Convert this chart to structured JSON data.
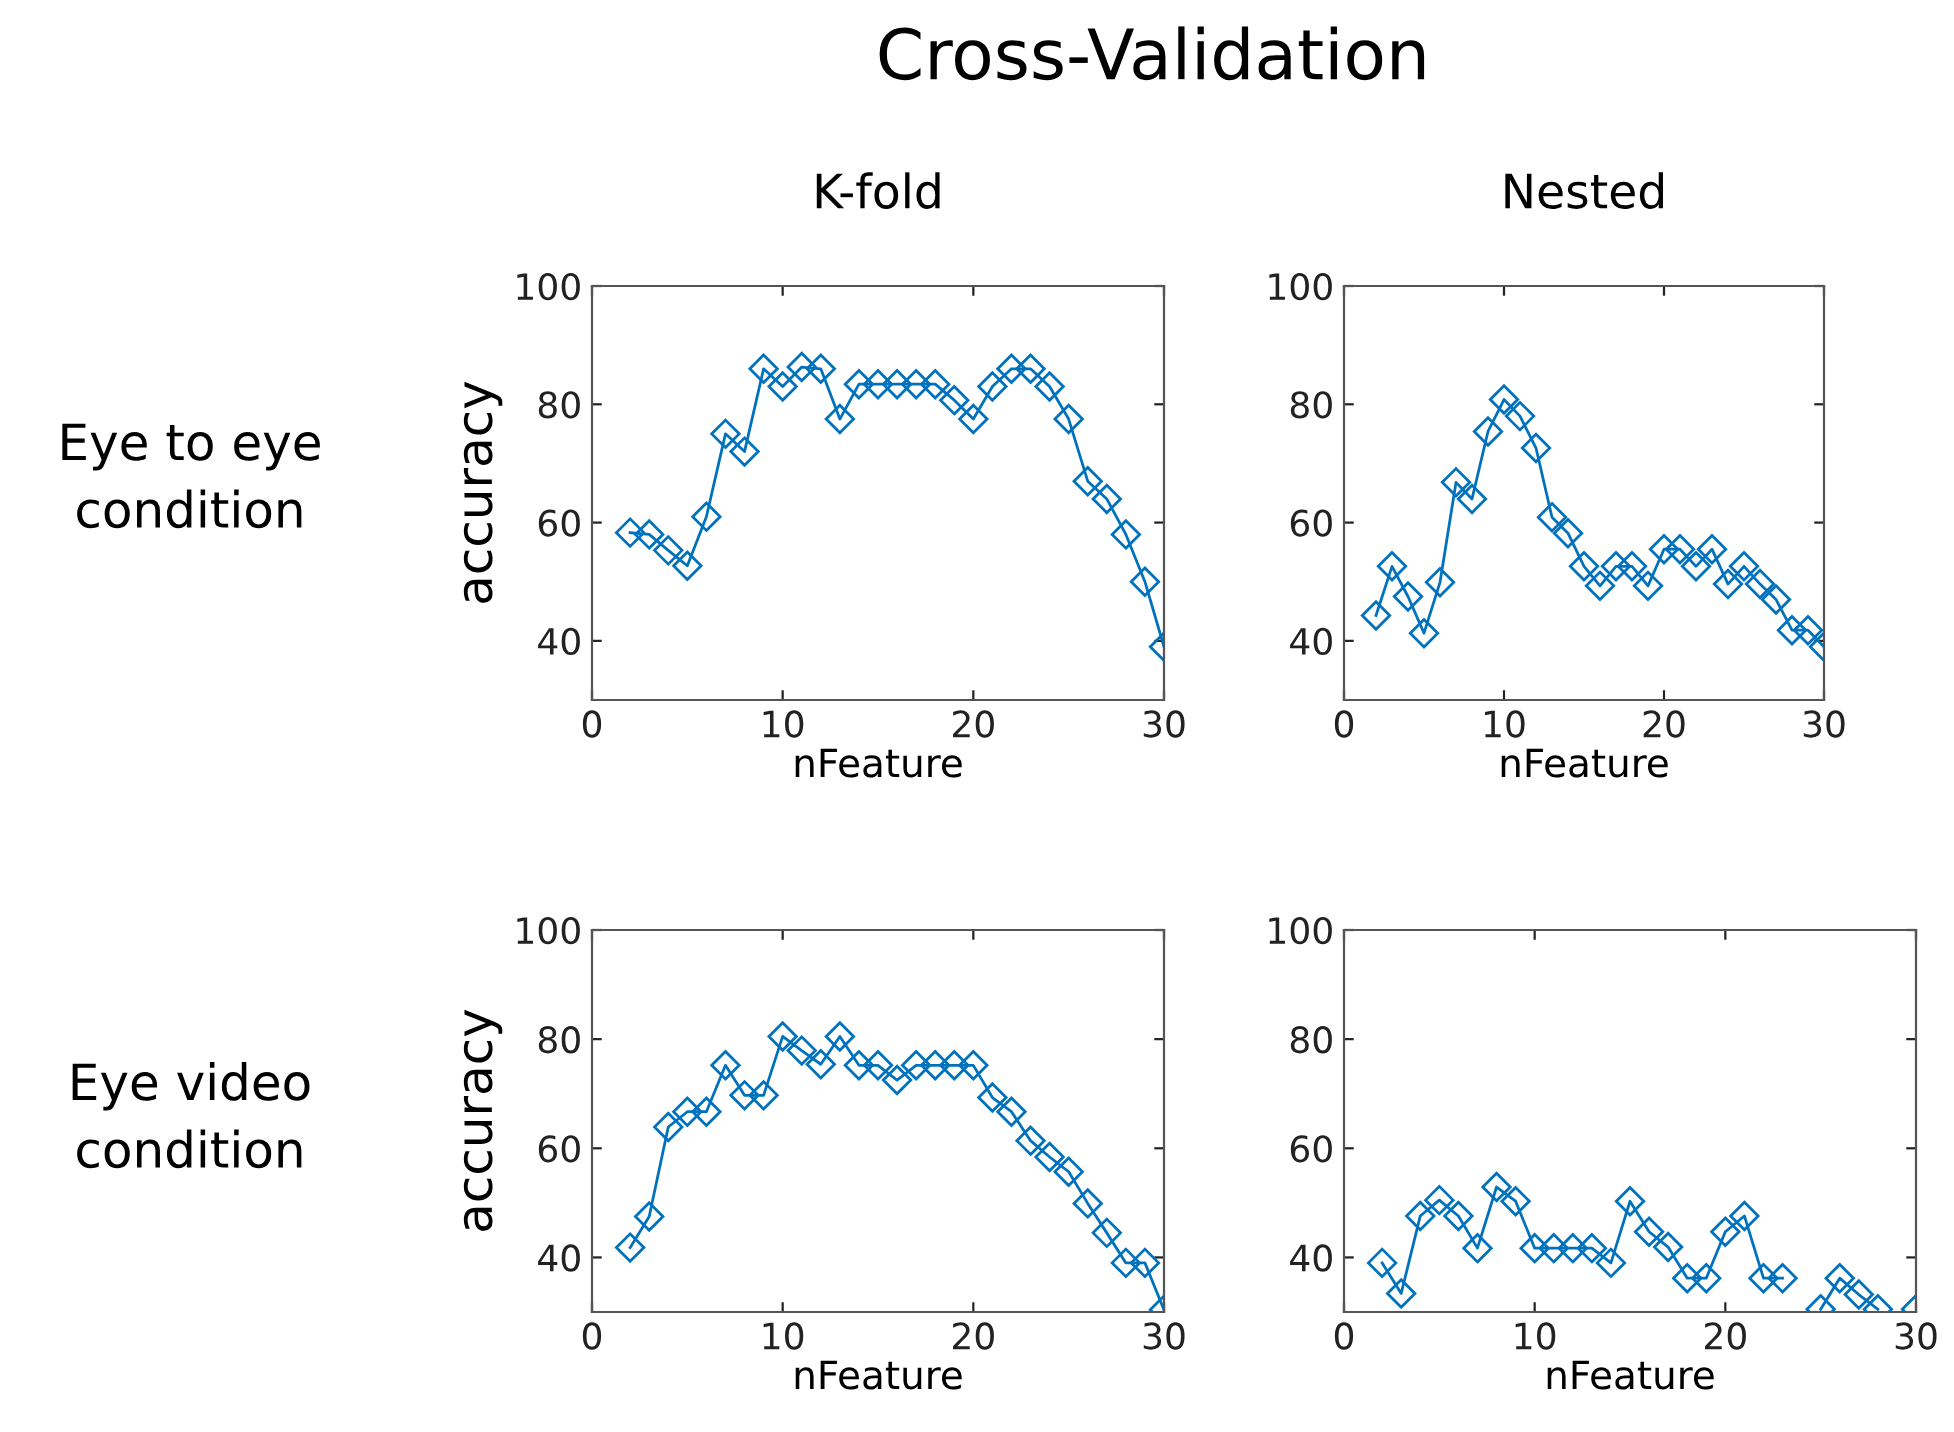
{
  "chart_data": [
    {
      "type": "line",
      "title": "K-fold",
      "xlabel": "nFeature",
      "ylabel": "accuracy",
      "annotations": [
        "Cross-Validation",
        "Eye to eye condition"
      ],
      "xlim": [
        0,
        30
      ],
      "xticks": [
        0,
        10,
        20,
        30
      ],
      "ylim": [
        30,
        100
      ],
      "yticks": [
        40,
        60,
        80,
        100
      ],
      "grid": false,
      "marker": "diamond",
      "line_style": "solid",
      "x": [
        2,
        3,
        4,
        5,
        6,
        7,
        8,
        9,
        10,
        11,
        12,
        13,
        14,
        15,
        16,
        17,
        18,
        19,
        20,
        21,
        22,
        23,
        24,
        25,
        26,
        27,
        28,
        29,
        30
      ],
      "series": [
        {
          "color": "#0072bd",
          "values": [
            58.3,
            58,
            55.3,
            52.7,
            61,
            75,
            72,
            86,
            83,
            86.3,
            86,
            77.5,
            83.4,
            83.4,
            83.4,
            83.4,
            83.4,
            80.7,
            77.5,
            83,
            86,
            86,
            83,
            77.5,
            67,
            64,
            58,
            50,
            39
          ]
        }
      ]
    },
    {
      "type": "line",
      "title": "Nested",
      "xlabel": "nFeature",
      "xlim": [
        0,
        30
      ],
      "xticks": [
        0,
        10,
        20,
        30
      ],
      "ylim": [
        30,
        100
      ],
      "yticks": [
        40,
        60,
        80,
        100
      ],
      "grid": false,
      "marker": "diamond",
      "line_style": "solid",
      "x": [
        2,
        3,
        4,
        5,
        6,
        7,
        8,
        9,
        10,
        11,
        12,
        13,
        14,
        15,
        16,
        17,
        18,
        19,
        20,
        21,
        22,
        23,
        24,
        25,
        26,
        27,
        28,
        29,
        30
      ],
      "series": [
        {
          "color": "#0072bd",
          "values": [
            44.3,
            52.6,
            47.5,
            41.3,
            49.9,
            66.8,
            64,
            75.4,
            80.8,
            78,
            72.6,
            60.9,
            58.2,
            52.6,
            49.3,
            52.6,
            52.6,
            49.3,
            55.5,
            55.5,
            52.6,
            55.5,
            49.6,
            52.6,
            49.6,
            47,
            41.8,
            41.8,
            39
          ]
        }
      ]
    },
    {
      "type": "line",
      "xlabel": "nFeature",
      "ylabel": "accuracy",
      "annotations": [
        "Eye video condition"
      ],
      "xlim": [
        0,
        30
      ],
      "xticks": [
        0,
        10,
        20,
        30
      ],
      "ylim": [
        30,
        100
      ],
      "yticks": [
        40,
        60,
        80,
        100
      ],
      "grid": false,
      "marker": "diamond",
      "line_style": "solid",
      "x": [
        2,
        3,
        4,
        5,
        6,
        7,
        8,
        9,
        10,
        11,
        12,
        13,
        14,
        15,
        16,
        17,
        18,
        19,
        20,
        21,
        22,
        23,
        24,
        25,
        26,
        27,
        28,
        29,
        30
      ],
      "series": [
        {
          "color": "#0072bd",
          "values": [
            41.8,
            47.5,
            63.9,
            66.7,
            66.7,
            75.2,
            69.7,
            69.7,
            80.5,
            77.9,
            75.4,
            80.5,
            75.2,
            75.2,
            72.5,
            75.2,
            75.2,
            75.2,
            75.2,
            69.3,
            66.7,
            61.4,
            58.4,
            55.7,
            49.9,
            44.5,
            39,
            39,
            30.4
          ]
        }
      ]
    },
    {
      "type": "line",
      "xlabel": "nFeature",
      "xlim": [
        0,
        30
      ],
      "xticks": [
        0,
        10,
        20,
        30
      ],
      "ylim": [
        30,
        100
      ],
      "yticks": [
        40,
        60,
        80,
        100
      ],
      "grid": false,
      "marker": "diamond",
      "line_style": "solid",
      "x": [
        2,
        3,
        4,
        5,
        6,
        7,
        8,
        9,
        10,
        11,
        12,
        13,
        14,
        15,
        16,
        17,
        18,
        19,
        20,
        21,
        22,
        23,
        24,
        25,
        26,
        27,
        28,
        29,
        30
      ],
      "series": [
        {
          "color": "#0072bd",
          "values": [
            39,
            33.4,
            47.6,
            50.5,
            47.6,
            41.7,
            52.9,
            50.3,
            41.7,
            41.7,
            41.7,
            41.7,
            39,
            50.3,
            44.7,
            41.9,
            36.2,
            36.2,
            44.7,
            47.6,
            36.2,
            36.2,
            null,
            30.5,
            36.2,
            33.2,
            30.5,
            null,
            30.5
          ]
        }
      ]
    }
  ]
}
